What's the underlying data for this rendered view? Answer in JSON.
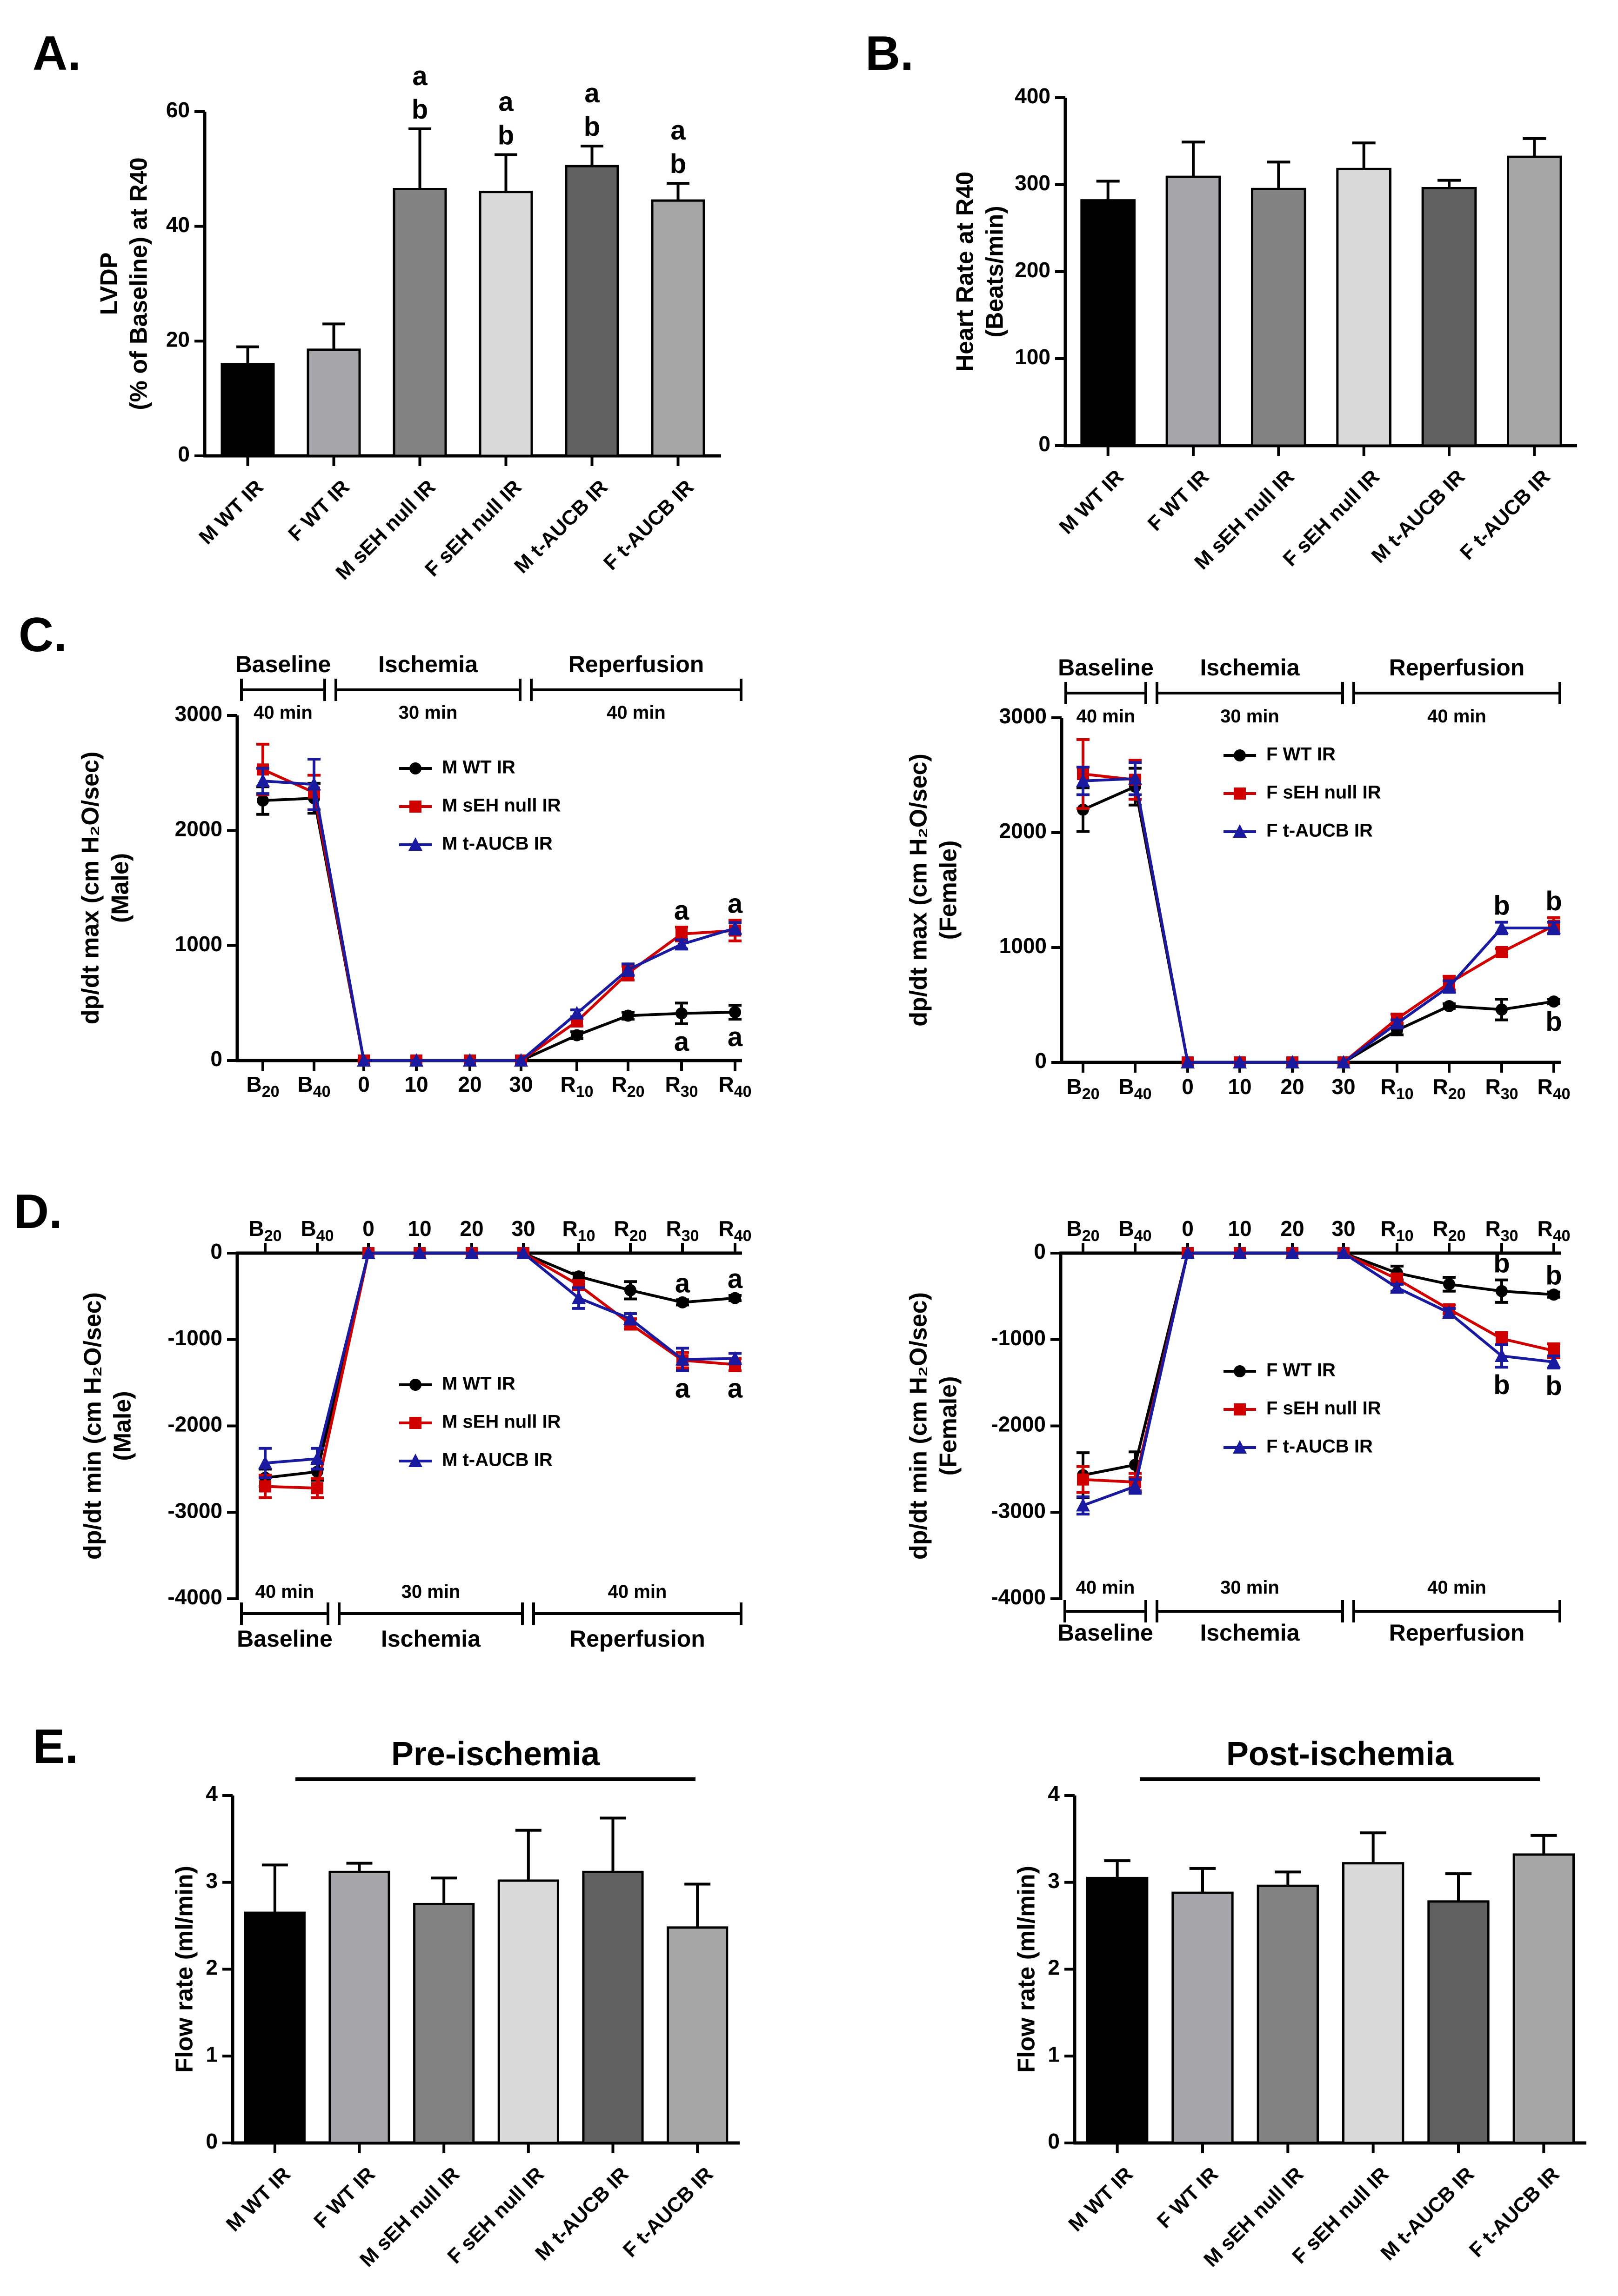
{
  "panels": {
    "A": {
      "label": "A."
    },
    "B": {
      "label": "B."
    },
    "C": {
      "label": "C."
    },
    "D": {
      "label": "D."
    },
    "E": {
      "label": "E."
    }
  },
  "colors": {
    "m_wt": "#000000",
    "f_wt": "#a6a6aa",
    "m_seh": "#828282",
    "f_seh": "#d9d9d9",
    "m_aucb": "#606060",
    "f_aucb": "#a6a6a6",
    "line_wt": "#000000",
    "line_seh": "#d00000",
    "line_aucb": "#1a1aa0"
  },
  "chart_data": [
    {
      "id": "A",
      "type": "bar",
      "title": "",
      "ylabel_lines": [
        "LVDP",
        "(% of Baseline) at R40"
      ],
      "categories": [
        "M WT IR",
        "F WT IR",
        "M sEH null IR",
        "F sEH null IR",
        "M t-AUCB IR",
        "F t-AUCB IR"
      ],
      "values": [
        16,
        18.5,
        46.5,
        46,
        50.5,
        44.5
      ],
      "errors": [
        3,
        4.5,
        10.5,
        6.5,
        3.5,
        3
      ],
      "significance": [
        [],
        [],
        [
          "a",
          "b"
        ],
        [
          "a",
          "b"
        ],
        [
          "a",
          "b"
        ],
        [
          "a",
          "b"
        ]
      ],
      "ylim": [
        0,
        60
      ],
      "yticks": [
        0,
        20,
        40,
        60
      ],
      "ytick_labels": [
        "0",
        "20",
        "40",
        "60"
      ]
    },
    {
      "id": "B",
      "type": "bar",
      "title": "",
      "ylabel_lines": [
        "Heart Rate at R40",
        "(Beats/min)"
      ],
      "categories": [
        "M WT IR",
        "F WT IR",
        "M sEH null IR",
        "F sEH null IR",
        "M t-AUCB IR",
        "F t-AUCB IR"
      ],
      "values": [
        282,
        309,
        295,
        318,
        296,
        332
      ],
      "errors": [
        22,
        40,
        31,
        30,
        9,
        21
      ],
      "ylim": [
        0,
        400
      ],
      "yticks": [
        0,
        100,
        200,
        300,
        400
      ],
      "ytick_labels": [
        "0",
        "100",
        "200",
        "300",
        "400"
      ]
    },
    {
      "id": "C-male",
      "type": "line",
      "ylabel_lines": [
        "dp/dt max (cm H₂O/sec)",
        "(Male)"
      ],
      "x_labels": [
        [
          "B",
          "20"
        ],
        [
          "B",
          "40"
        ],
        [
          "0",
          ""
        ],
        [
          "10",
          ""
        ],
        [
          "20",
          ""
        ],
        [
          "30",
          ""
        ],
        [
          "R",
          "10"
        ],
        [
          "R",
          "20"
        ],
        [
          "R",
          "30"
        ],
        [
          "R",
          "40"
        ]
      ],
      "ylim": [
        0,
        3000
      ],
      "yticks": [
        0,
        1000,
        2000,
        3000
      ],
      "ytick_labels": [
        "0",
        "1000",
        "2000",
        "3000"
      ],
      "phases": [
        {
          "name": "Baseline",
          "duration": "40 min"
        },
        {
          "name": "Ischemia",
          "duration": "30 min"
        },
        {
          "name": "Reperfusion",
          "duration": "40 min"
        }
      ],
      "series": [
        {
          "name": "M WT IR",
          "values": [
            2260,
            2280,
            0,
            0,
            0,
            0,
            220,
            390,
            410,
            420
          ],
          "errors": [
            120,
            130,
            0,
            0,
            0,
            0,
            30,
            30,
            90,
            60
          ]
        },
        {
          "name": "M sEH null IR",
          "values": [
            2530,
            2330,
            0,
            0,
            0,
            0,
            340,
            760,
            1100,
            1130
          ],
          "errors": [
            220,
            150,
            0,
            0,
            0,
            0,
            40,
            60,
            60,
            90
          ]
        },
        {
          "name": "M t-AUCB IR",
          "values": [
            2430,
            2400,
            0,
            0,
            0,
            0,
            410,
            790,
            1010,
            1150
          ],
          "errors": [
            110,
            220,
            0,
            0,
            0,
            0,
            30,
            50,
            40,
            50
          ]
        }
      ],
      "annotations": [
        {
          "x": 8,
          "letters": [
            "a",
            "a"
          ]
        },
        {
          "x": 9,
          "letters": [
            "a",
            "a"
          ]
        }
      ]
    },
    {
      "id": "C-female",
      "type": "line",
      "ylabel_lines": [
        "dp/dt max (cm H₂O/sec)",
        "(Female)"
      ],
      "x_labels": [
        [
          "B",
          "20"
        ],
        [
          "B",
          "40"
        ],
        [
          "0",
          ""
        ],
        [
          "10",
          ""
        ],
        [
          "20",
          ""
        ],
        [
          "30",
          ""
        ],
        [
          "R",
          "10"
        ],
        [
          "R",
          "20"
        ],
        [
          "R",
          "30"
        ],
        [
          "R",
          "40"
        ]
      ],
      "ylim": [
        0,
        3000
      ],
      "yticks": [
        0,
        1000,
        2000,
        3000
      ],
      "ytick_labels": [
        "0",
        "1000",
        "2000",
        "3000"
      ],
      "phases": [
        {
          "name": "Baseline",
          "duration": "40 min"
        },
        {
          "name": "Ischemia",
          "duration": "30 min"
        },
        {
          "name": "Reperfusion",
          "duration": "40 min"
        }
      ],
      "series": [
        {
          "name": "F WT IR",
          "values": [
            2200,
            2400,
            0,
            0,
            0,
            0,
            280,
            490,
            460,
            530
          ],
          "errors": [
            190,
            160,
            0,
            0,
            0,
            0,
            40,
            20,
            90,
            20
          ]
        },
        {
          "name": "F sEH null IR",
          "values": [
            2510,
            2460,
            0,
            0,
            0,
            0,
            380,
            690,
            960,
            1190
          ],
          "errors": [
            300,
            170,
            0,
            0,
            0,
            0,
            40,
            60,
            30,
            70
          ]
        },
        {
          "name": "F t-AUCB IR",
          "values": [
            2450,
            2470,
            0,
            0,
            0,
            0,
            340,
            660,
            1170,
            1170
          ],
          "errors": [
            120,
            140,
            0,
            0,
            0,
            0,
            30,
            50,
            50,
            50
          ]
        }
      ],
      "annotations": [
        {
          "x": 8,
          "letters": [
            "b"
          ]
        },
        {
          "x": 9,
          "letters": [
            "b",
            "b"
          ]
        }
      ]
    },
    {
      "id": "D-male",
      "type": "line",
      "ylabel_lines": [
        "dp/dt min (cm H₂O/sec)",
        "(Male)"
      ],
      "x_labels": [
        [
          "B",
          "20"
        ],
        [
          "B",
          "40"
        ],
        [
          "0",
          ""
        ],
        [
          "10",
          ""
        ],
        [
          "20",
          ""
        ],
        [
          "30",
          ""
        ],
        [
          "R",
          "10"
        ],
        [
          "R",
          "20"
        ],
        [
          "R",
          "30"
        ],
        [
          "R",
          "40"
        ]
      ],
      "ylim": [
        -4000,
        0
      ],
      "yticks": [
        -4000,
        -3000,
        -2000,
        -1000,
        0
      ],
      "ytick_labels": [
        "-4000",
        "-3000",
        "-2000",
        "-1000",
        "0"
      ],
      "phases": [
        {
          "name": "Baseline",
          "duration": "40 min"
        },
        {
          "name": "Ischemia",
          "duration": "30 min"
        },
        {
          "name": "Reperfusion",
          "duration": "40 min"
        }
      ],
      "series": [
        {
          "name": "M WT IR",
          "values": [
            -2600,
            -2530,
            0,
            0,
            0,
            0,
            -270,
            -430,
            -570,
            -520
          ],
          "errors": [
            100,
            100,
            0,
            0,
            0,
            0,
            40,
            100,
            30,
            30
          ]
        },
        {
          "name": "M sEH null IR",
          "values": [
            -2700,
            -2720,
            0,
            0,
            0,
            0,
            -370,
            -820,
            -1240,
            -1290
          ],
          "errors": [
            130,
            110,
            0,
            0,
            0,
            0,
            50,
            60,
            90,
            70
          ]
        },
        {
          "name": "M t-AUCB IR",
          "values": [
            -2430,
            -2380,
            0,
            0,
            0,
            0,
            -520,
            -760,
            -1230,
            -1220
          ],
          "errors": [
            170,
            120,
            0,
            0,
            0,
            0,
            120,
            60,
            130,
            60
          ]
        }
      ],
      "annotations": [
        {
          "x": 8,
          "letters": [
            "a",
            "a"
          ]
        },
        {
          "x": 9,
          "letters": [
            "a",
            "a"
          ]
        }
      ]
    },
    {
      "id": "D-female",
      "type": "line",
      "ylabel_lines": [
        "dp/dt min (cm H₂O/sec)",
        "(Female)"
      ],
      "x_labels": [
        [
          "B",
          "20"
        ],
        [
          "B",
          "40"
        ],
        [
          "0",
          ""
        ],
        [
          "10",
          ""
        ],
        [
          "20",
          ""
        ],
        [
          "30",
          ""
        ],
        [
          "R",
          "10"
        ],
        [
          "R",
          "20"
        ],
        [
          "R",
          "30"
        ],
        [
          "R",
          "40"
        ]
      ],
      "ylim": [
        -4000,
        0
      ],
      "yticks": [
        -4000,
        -3000,
        -2000,
        -1000,
        0
      ],
      "ytick_labels": [
        "-4000",
        "-3000",
        "-2000",
        "-1000",
        "0"
      ],
      "phases": [
        {
          "name": "Baseline",
          "duration": "40 min"
        },
        {
          "name": "Ischemia",
          "duration": "30 min"
        },
        {
          "name": "Reperfusion",
          "duration": "40 min"
        }
      ],
      "series": [
        {
          "name": "F WT IR",
          "values": [
            -2570,
            -2450,
            0,
            0,
            0,
            0,
            -230,
            -360,
            -440,
            -480
          ],
          "errors": [
            260,
            150,
            0,
            0,
            0,
            0,
            80,
            80,
            130,
            30
          ]
        },
        {
          "name": "F sEH null IR",
          "values": [
            -2620,
            -2650,
            0,
            0,
            0,
            0,
            -300,
            -650,
            -990,
            -1130
          ],
          "errors": [
            150,
            100,
            0,
            0,
            0,
            0,
            60,
            50,
            70,
            80
          ]
        },
        {
          "name": "F t-AUCB IR",
          "values": [
            -2920,
            -2700,
            0,
            0,
            0,
            0,
            -400,
            -690,
            -1190,
            -1260
          ],
          "errors": [
            100,
            80,
            0,
            0,
            0,
            0,
            40,
            50,
            130,
            70
          ]
        }
      ],
      "annotations": [
        {
          "x": 8,
          "letters": [
            "b",
            "b"
          ]
        },
        {
          "x": 9,
          "letters": [
            "b",
            "b"
          ]
        }
      ]
    },
    {
      "id": "E-pre",
      "type": "bar",
      "title": "Pre-ischemia",
      "ylabel_lines": [
        "Flow rate (ml/min)"
      ],
      "categories": [
        "M WT IR",
        "F WT IR",
        "M sEH null IR",
        "F sEH null IR",
        "M t-AUCB IR",
        "F t-AUCB IR"
      ],
      "values": [
        2.65,
        3.12,
        2.75,
        3.02,
        3.12,
        2.48
      ],
      "errors": [
        0.55,
        0.1,
        0.3,
        0.58,
        0.62,
        0.5
      ],
      "ylim": [
        0,
        4
      ],
      "yticks": [
        0,
        1,
        2,
        3,
        4
      ],
      "ytick_labels": [
        "0",
        "1",
        "2",
        "3",
        "4"
      ]
    },
    {
      "id": "E-post",
      "type": "bar",
      "title": "Post-ischemia",
      "ylabel_lines": [
        "Flow rate (ml/min)"
      ],
      "categories": [
        "M WT IR",
        "F WT IR",
        "M sEH null IR",
        "F sEH null IR",
        "M t-AUCB IR",
        "F t-AUCB IR"
      ],
      "values": [
        3.05,
        2.88,
        2.96,
        3.22,
        2.78,
        3.32
      ],
      "errors": [
        0.2,
        0.28,
        0.16,
        0.35,
        0.32,
        0.22
      ],
      "ylim": [
        0,
        4
      ],
      "yticks": [
        0,
        1,
        2,
        3,
        4
      ],
      "ytick_labels": [
        "0",
        "1",
        "2",
        "3",
        "4"
      ]
    }
  ]
}
